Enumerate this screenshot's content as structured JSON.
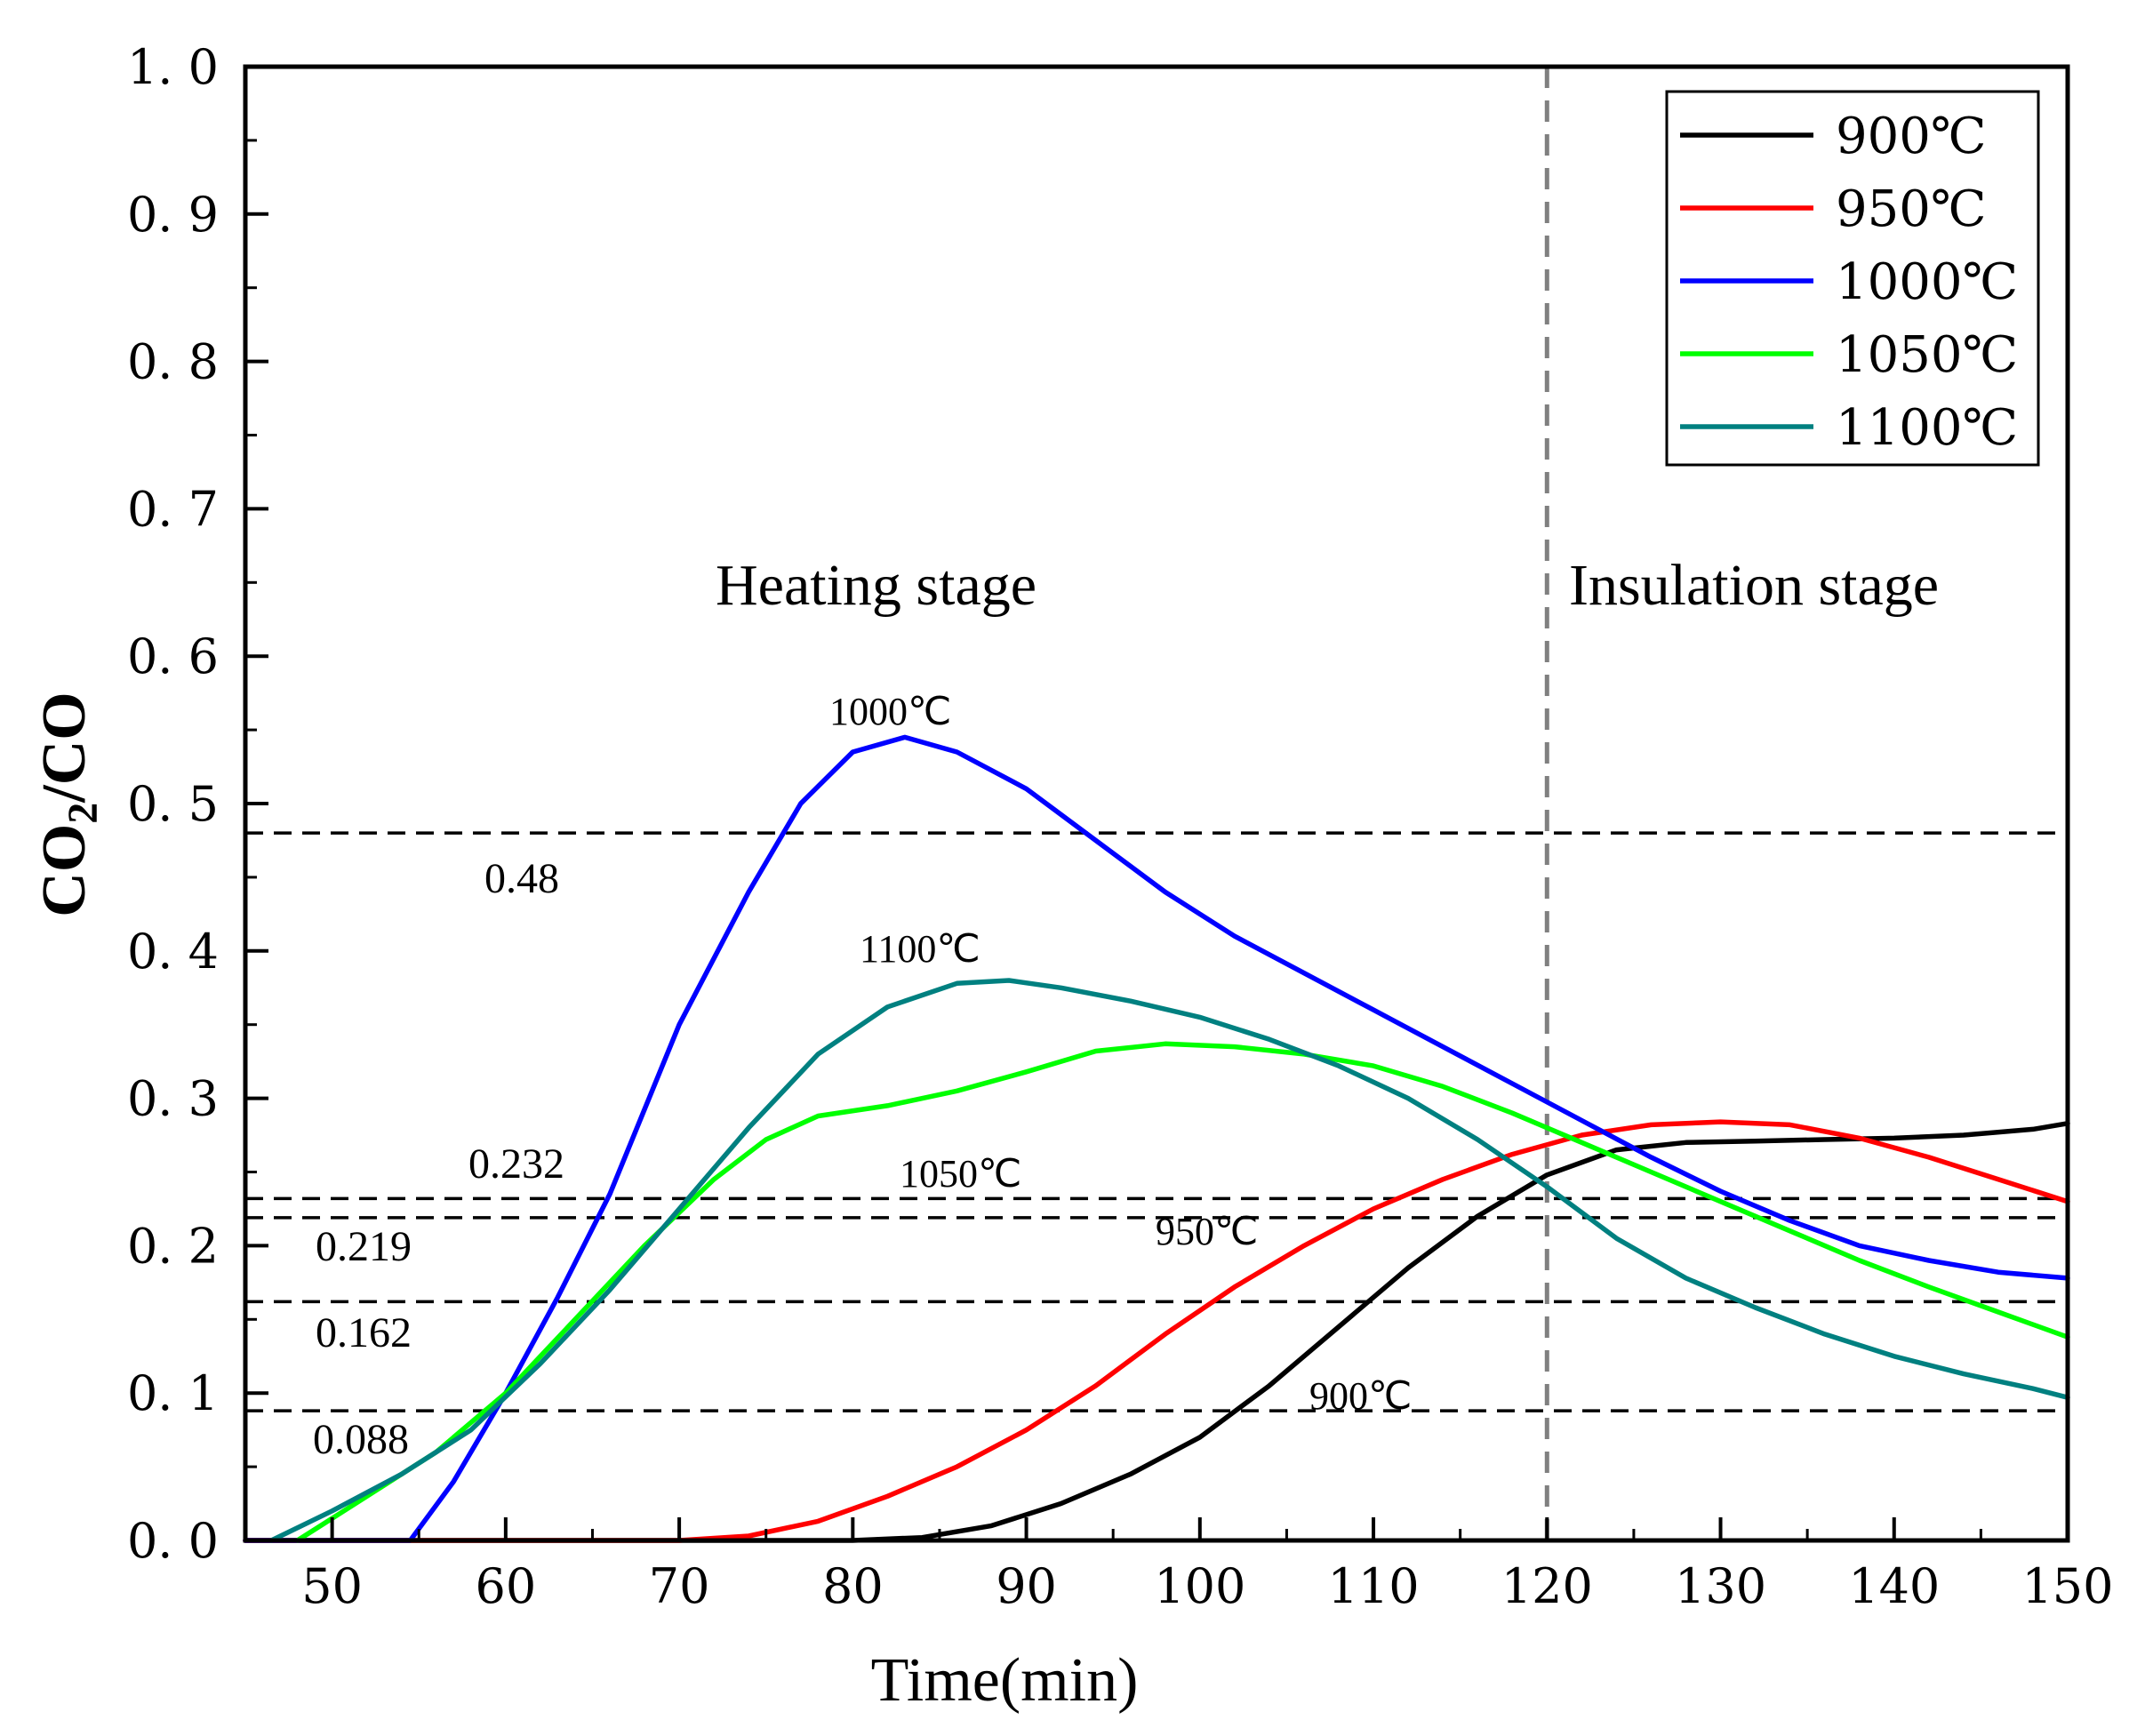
{
  "chart_data": {
    "type": "line",
    "xlabel": "Time(min)",
    "ylabel_main": "CO",
    "ylabel_sub": "2",
    "ylabel_rest": "/CO",
    "xlim": [
      45,
      150
    ],
    "ylim": [
      0,
      1.0
    ],
    "x_ticks": [
      50,
      60,
      70,
      80,
      90,
      100,
      110,
      120,
      130,
      140,
      150
    ],
    "x_tick_labels": [
      "50",
      "60",
      "70",
      "80",
      "90",
      "100",
      "110",
      "120",
      "130",
      "140",
      "150"
    ],
    "y_ticks": [
      0,
      0.1,
      0.2,
      0.3,
      0.4,
      0.5,
      0.6,
      0.7,
      0.8,
      0.9,
      1.0
    ],
    "y_tick_labels": [
      "0. 0",
      "0. 1",
      "0. 2",
      "0. 3",
      "0. 4",
      "0. 5",
      "0. 6",
      "0. 7",
      "0. 8",
      "0. 9",
      "1. 0"
    ],
    "stage_divider_x": 120,
    "stage_labels": [
      "Heating stage",
      "Insulation stage"
    ],
    "reference_lines": [
      {
        "y": 0.48,
        "label": "0.48"
      },
      {
        "y": 0.232,
        "label": "0.232"
      },
      {
        "y": 0.219,
        "label": "0.219"
      },
      {
        "y": 0.162,
        "label": "0.162"
      },
      {
        "y": 0.088,
        "label": "0.088"
      }
    ],
    "curve_annotations": [
      "1000℃",
      "1100℃",
      "1050℃",
      "950℃",
      "900℃"
    ],
    "legend_position": "top-right",
    "series": [
      {
        "name": "900℃",
        "color": "#000000",
        "points": [
          [
            45,
            0
          ],
          [
            80,
            0
          ],
          [
            84,
            0.002
          ],
          [
            88,
            0.01
          ],
          [
            92,
            0.025
          ],
          [
            96,
            0.045
          ],
          [
            100,
            0.07
          ],
          [
            104,
            0.105
          ],
          [
            108,
            0.145
          ],
          [
            112,
            0.185
          ],
          [
            116,
            0.22
          ],
          [
            120,
            0.248
          ],
          [
            124,
            0.265
          ],
          [
            128,
            0.27
          ],
          [
            132,
            0.271
          ],
          [
            136,
            0.272
          ],
          [
            140,
            0.273
          ],
          [
            144,
            0.275
          ],
          [
            148,
            0.279
          ],
          [
            150,
            0.283
          ]
        ]
      },
      {
        "name": "950℃",
        "color": "#ff0000",
        "points": [
          [
            45,
            0
          ],
          [
            70,
            0
          ],
          [
            74,
            0.003
          ],
          [
            78,
            0.013
          ],
          [
            82,
            0.03
          ],
          [
            86,
            0.05
          ],
          [
            90,
            0.075
          ],
          [
            94,
            0.105
          ],
          [
            98,
            0.14
          ],
          [
            102,
            0.172
          ],
          [
            106,
            0.2
          ],
          [
            110,
            0.225
          ],
          [
            114,
            0.245
          ],
          [
            118,
            0.262
          ],
          [
            122,
            0.275
          ],
          [
            126,
            0.282
          ],
          [
            130,
            0.284
          ],
          [
            134,
            0.282
          ],
          [
            138,
            0.273
          ],
          [
            142,
            0.26
          ],
          [
            146,
            0.245
          ],
          [
            150,
            0.23
          ]
        ]
      },
      {
        "name": "1000℃",
        "color": "#0000ff",
        "points": [
          [
            45,
            0
          ],
          [
            54.5,
            0
          ],
          [
            57,
            0.04
          ],
          [
            60,
            0.1
          ],
          [
            63,
            0.165
          ],
          [
            66,
            0.235
          ],
          [
            70,
            0.35
          ],
          [
            74,
            0.44
          ],
          [
            77,
            0.5
          ],
          [
            80,
            0.535
          ],
          [
            83,
            0.545
          ],
          [
            86,
            0.535
          ],
          [
            90,
            0.51
          ],
          [
            94,
            0.475
          ],
          [
            98,
            0.44
          ],
          [
            102,
            0.41
          ],
          [
            106,
            0.385
          ],
          [
            110,
            0.36
          ],
          [
            114,
            0.335
          ],
          [
            118,
            0.31
          ],
          [
            122,
            0.285
          ],
          [
            126,
            0.26
          ],
          [
            130,
            0.237
          ],
          [
            134,
            0.217
          ],
          [
            138,
            0.2
          ],
          [
            142,
            0.19
          ],
          [
            146,
            0.182
          ],
          [
            150,
            0.178
          ]
        ]
      },
      {
        "name": "1050℃",
        "color": "#00ff00",
        "points": [
          [
            48,
            0
          ],
          [
            52,
            0.03
          ],
          [
            56,
            0.06
          ],
          [
            60,
            0.1
          ],
          [
            64,
            0.15
          ],
          [
            68,
            0.2
          ],
          [
            72,
            0.245
          ],
          [
            75,
            0.272
          ],
          [
            78,
            0.288
          ],
          [
            82,
            0.295
          ],
          [
            86,
            0.305
          ],
          [
            90,
            0.318
          ],
          [
            94,
            0.332
          ],
          [
            98,
            0.337
          ],
          [
            102,
            0.335
          ],
          [
            106,
            0.33
          ],
          [
            110,
            0.322
          ],
          [
            114,
            0.308
          ],
          [
            118,
            0.29
          ],
          [
            122,
            0.27
          ],
          [
            126,
            0.25
          ],
          [
            130,
            0.23
          ],
          [
            134,
            0.21
          ],
          [
            138,
            0.19
          ],
          [
            142,
            0.172
          ],
          [
            146,
            0.155
          ],
          [
            150,
            0.138
          ]
        ]
      },
      {
        "name": "1100℃",
        "color": "#008080",
        "points": [
          [
            46.5,
            0
          ],
          [
            50,
            0.02
          ],
          [
            54,
            0.045
          ],
          [
            58,
            0.075
          ],
          [
            62,
            0.12
          ],
          [
            66,
            0.17
          ],
          [
            70,
            0.225
          ],
          [
            74,
            0.28
          ],
          [
            78,
            0.33
          ],
          [
            82,
            0.362
          ],
          [
            86,
            0.378
          ],
          [
            89,
            0.38
          ],
          [
            92,
            0.375
          ],
          [
            96,
            0.366
          ],
          [
            100,
            0.355
          ],
          [
            104,
            0.34
          ],
          [
            108,
            0.322
          ],
          [
            112,
            0.3
          ],
          [
            116,
            0.272
          ],
          [
            120,
            0.24
          ],
          [
            124,
            0.205
          ],
          [
            128,
            0.178
          ],
          [
            132,
            0.158
          ],
          [
            136,
            0.14
          ],
          [
            140,
            0.125
          ],
          [
            144,
            0.113
          ],
          [
            148,
            0.103
          ],
          [
            150,
            0.097
          ]
        ]
      }
    ]
  }
}
